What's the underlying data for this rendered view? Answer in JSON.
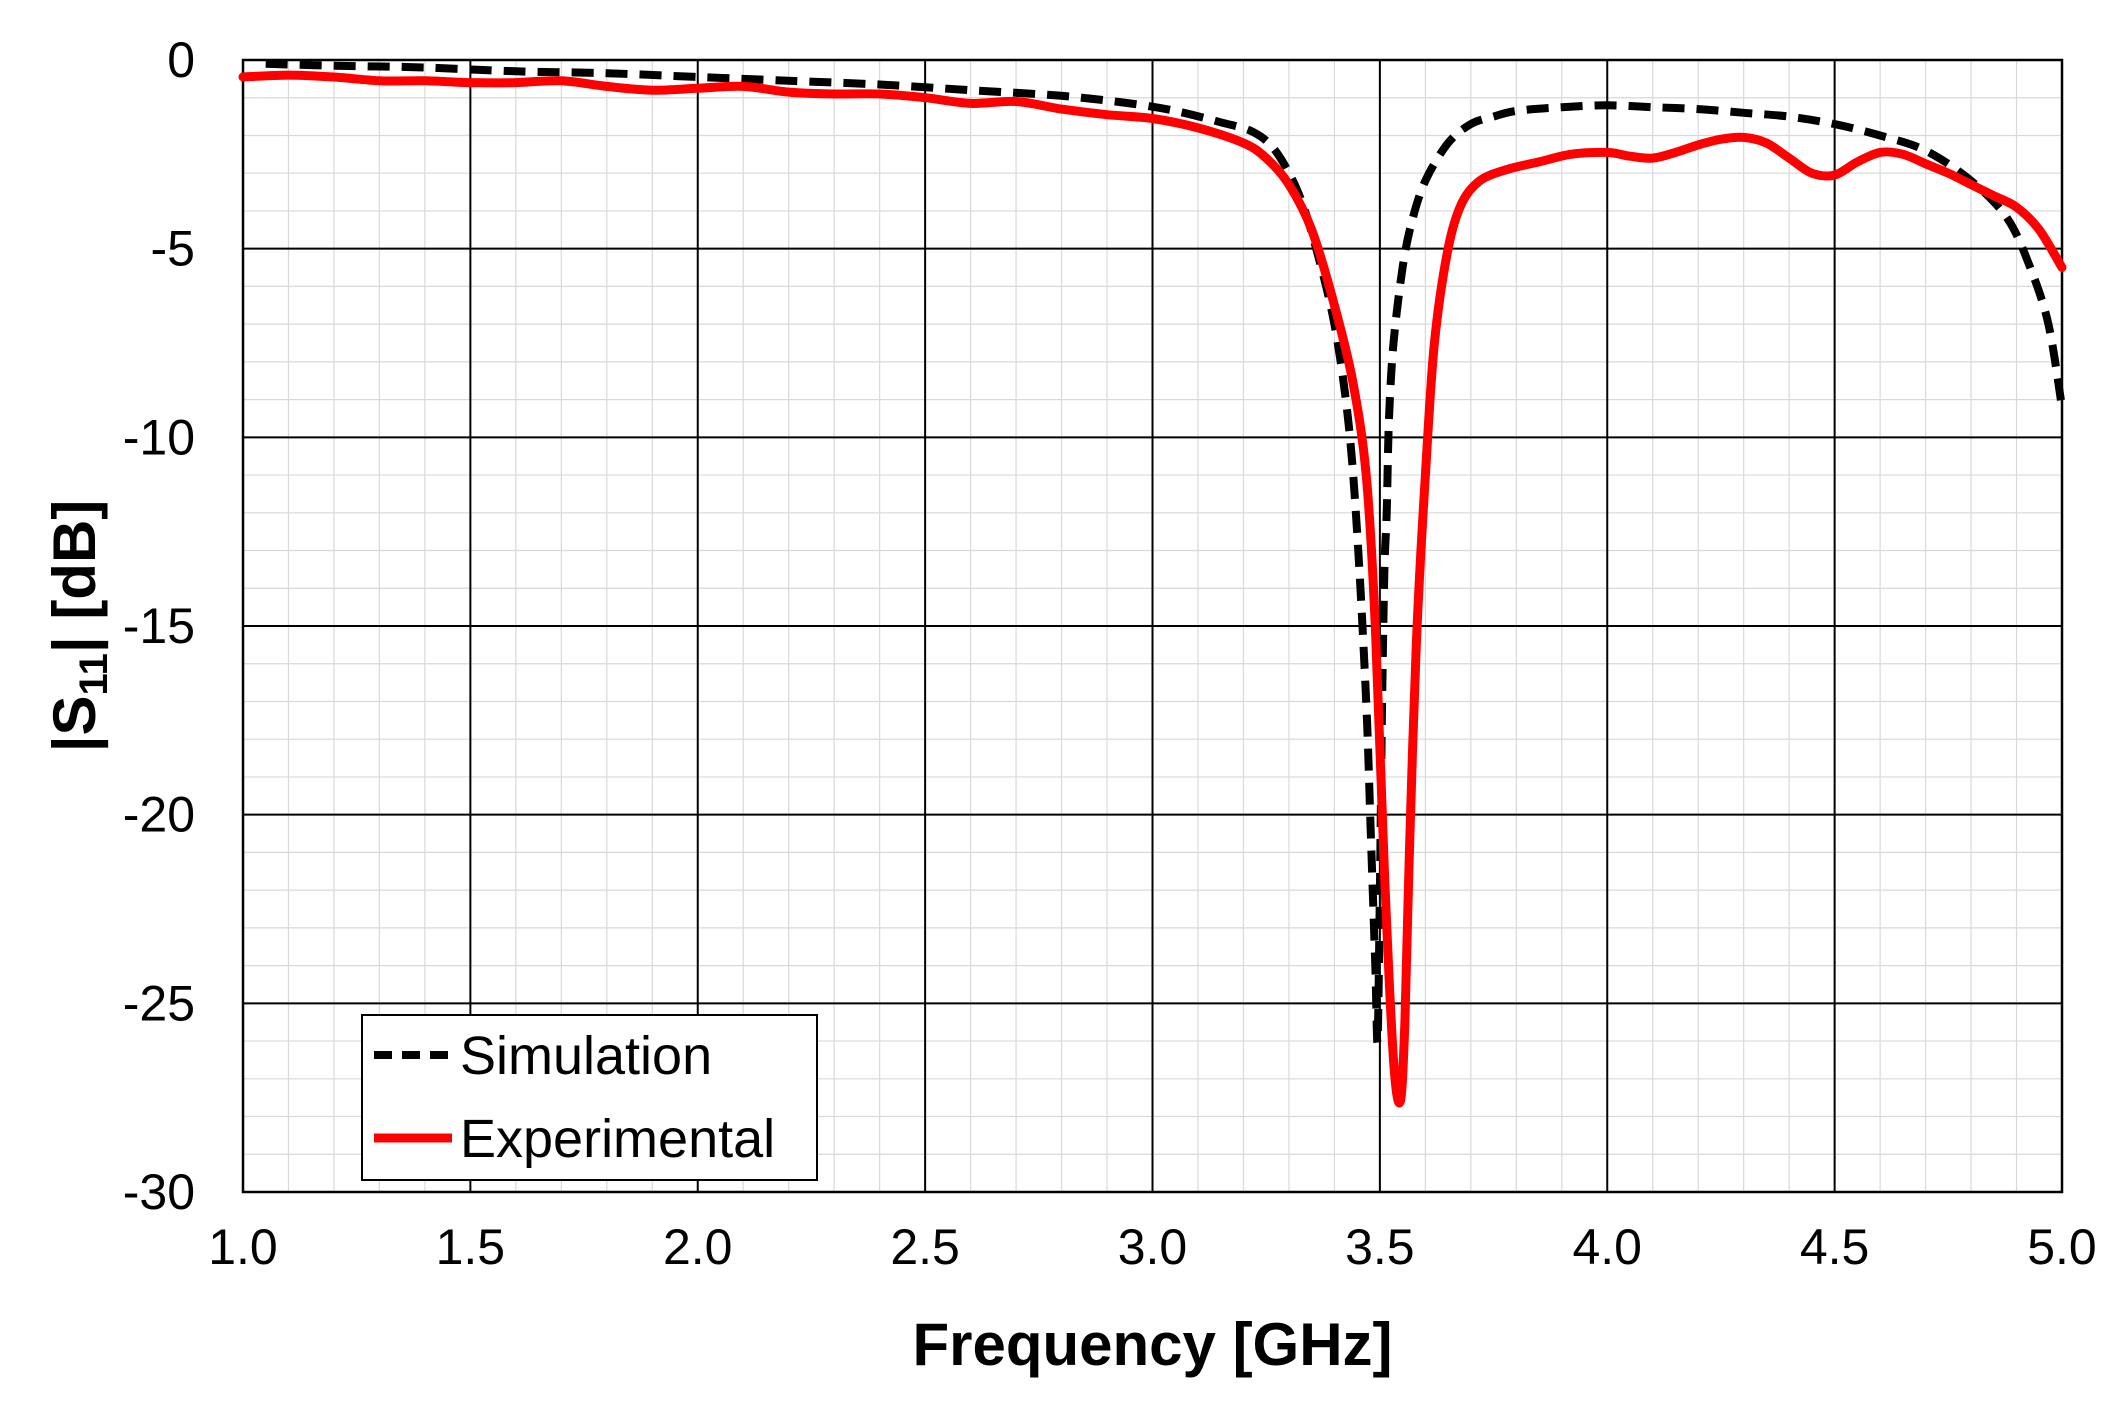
{
  "chart_data": {
    "type": "line",
    "xlabel": "Frequency [GHz]",
    "ylabel_main": "|S",
    "ylabel_sub": "11",
    "ylabel_rest": "| [dB]",
    "xlim": [
      1.0,
      5.0
    ],
    "ylim": [
      -30,
      0
    ],
    "x_ticks": [
      "1.0",
      "1.5",
      "2.0",
      "2.5",
      "3.0",
      "3.5",
      "4.0",
      "4.5",
      "5.0"
    ],
    "y_ticks": [
      "0",
      "-5",
      "-10",
      "-15",
      "-20",
      "-25",
      "-30"
    ],
    "grid": true,
    "minor_grid": true,
    "legend_position": "bottom-left",
    "series": [
      {
        "name": "Simulation",
        "color": "#000000",
        "style": "dashed",
        "x": [
          1.05,
          1.2,
          1.4,
          1.6,
          1.8,
          2.0,
          2.2,
          2.4,
          2.6,
          2.8,
          2.95,
          3.05,
          3.15,
          3.22,
          3.27,
          3.32,
          3.36,
          3.4,
          3.43,
          3.45,
          3.47,
          3.48,
          3.49,
          3.495,
          3.5,
          3.505,
          3.51,
          3.515,
          3.52,
          3.53,
          3.55,
          3.57,
          3.6,
          3.65,
          3.7,
          3.75,
          3.8,
          3.9,
          4.0,
          4.1,
          4.2,
          4.3,
          4.4,
          4.5,
          4.6,
          4.7,
          4.8,
          4.88,
          4.93,
          4.97,
          5.0
        ],
        "y": [
          -0.1,
          -0.15,
          -0.2,
          -0.3,
          -0.35,
          -0.45,
          -0.55,
          -0.65,
          -0.8,
          -0.95,
          -1.15,
          -1.35,
          -1.65,
          -1.9,
          -2.4,
          -3.5,
          -5.0,
          -7.0,
          -9.5,
          -12.5,
          -17.0,
          -20.5,
          -24.0,
          -26.0,
          -22.0,
          -17.0,
          -13.5,
          -12.0,
          -9.5,
          -7.5,
          -5.5,
          -4.3,
          -3.2,
          -2.2,
          -1.7,
          -1.5,
          -1.35,
          -1.25,
          -1.2,
          -1.25,
          -1.3,
          -1.4,
          -1.5,
          -1.7,
          -2.0,
          -2.4,
          -3.2,
          -4.2,
          -5.5,
          -7.0,
          -9.2
        ]
      },
      {
        "name": "Experimental",
        "color": "#ff0000",
        "style": "solid",
        "x": [
          1.0,
          1.1,
          1.2,
          1.3,
          1.4,
          1.5,
          1.6,
          1.7,
          1.8,
          1.9,
          2.0,
          2.1,
          2.2,
          2.3,
          2.4,
          2.5,
          2.6,
          2.7,
          2.8,
          2.9,
          3.0,
          3.1,
          3.2,
          3.25,
          3.3,
          3.35,
          3.4,
          3.44,
          3.47,
          3.49,
          3.51,
          3.53,
          3.545,
          3.555,
          3.565,
          3.58,
          3.6,
          3.62,
          3.65,
          3.68,
          3.72,
          3.78,
          3.85,
          3.92,
          4.0,
          4.05,
          4.1,
          4.15,
          4.2,
          4.25,
          4.3,
          4.35,
          4.4,
          4.45,
          4.5,
          4.55,
          4.6,
          4.65,
          4.7,
          4.75,
          4.8,
          4.85,
          4.9,
          4.95,
          5.0
        ],
        "y": [
          -0.45,
          -0.4,
          -0.45,
          -0.55,
          -0.55,
          -0.6,
          -0.6,
          -0.55,
          -0.7,
          -0.8,
          -0.75,
          -0.7,
          -0.85,
          -0.9,
          -0.9,
          -1.0,
          -1.15,
          -1.1,
          -1.3,
          -1.45,
          -1.55,
          -1.8,
          -2.2,
          -2.6,
          -3.3,
          -4.5,
          -6.5,
          -8.5,
          -11.0,
          -15.0,
          -21.5,
          -26.5,
          -27.6,
          -25.5,
          -21.0,
          -15.5,
          -11.0,
          -7.5,
          -5.0,
          -3.8,
          -3.2,
          -2.9,
          -2.7,
          -2.5,
          -2.45,
          -2.55,
          -2.6,
          -2.45,
          -2.25,
          -2.1,
          -2.05,
          -2.2,
          -2.6,
          -3.0,
          -3.05,
          -2.7,
          -2.45,
          -2.5,
          -2.75,
          -3.0,
          -3.3,
          -3.6,
          -3.9,
          -4.5,
          -5.5
        ]
      }
    ]
  }
}
